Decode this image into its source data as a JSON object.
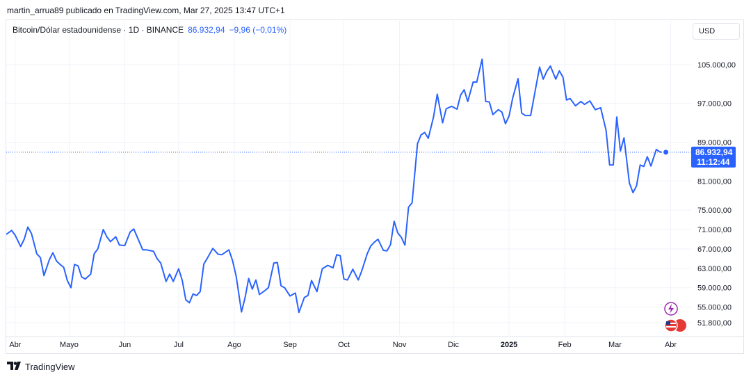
{
  "header": {
    "byline": "martin_arrua89 publicado en TradingView.com, Mar 27, 2025 13:47 UTC+1"
  },
  "legend": {
    "symbol": "Bitcoin/Dólar estadounidense · 1D · BINANCE",
    "price": "86.932,94",
    "change": "−9,96 (−0,01%)"
  },
  "currency": "USD",
  "last_price": {
    "price": "86.932,94",
    "countdown": "11:12:44"
  },
  "footer": {
    "brand": "TradingView"
  },
  "colors": {
    "line": "#2962ff",
    "grid": "#f0f3fa",
    "text": "#131722"
  },
  "chart_data": {
    "type": "line",
    "x_ticks": [
      "Abr",
      "Mayo",
      "Jun",
      "Jul",
      "Ago",
      "Sep",
      "Oct",
      "Nov",
      "Dic",
      "2025",
      "Feb",
      "Mar",
      "Abr"
    ],
    "x_tick_dates": [
      "2024-04-01",
      "2024-05-01",
      "2024-06-01",
      "2024-07-01",
      "2024-08-01",
      "2024-09-01",
      "2024-10-01",
      "2024-11-01",
      "2024-12-01",
      "2025-01-01",
      "2025-02-01",
      "2025-03-01",
      "2025-04-01"
    ],
    "y_ticks": [
      105000,
      97000,
      89000,
      81000,
      75000,
      71000,
      67000,
      63000,
      59000,
      55000,
      51800
    ],
    "y_tick_labels": [
      "105.000,00",
      "97.000,00",
      "89.000,00",
      "81.000,00",
      "75.000,00",
      "71.000,00",
      "67.000,00",
      "63.000,00",
      "59.000,00",
      "55.000,00",
      "51.800,00"
    ],
    "ylim": [
      49500,
      110000
    ],
    "xlim": [
      "2024-03-27",
      "2025-04-07"
    ],
    "series": [
      {
        "values": [
          [
            "2024-03-27",
            70000
          ],
          [
            "2024-03-30",
            70800
          ],
          [
            "2024-04-01",
            69800
          ],
          [
            "2024-04-04",
            67500
          ],
          [
            "2024-04-06",
            69000
          ],
          [
            "2024-04-08",
            71500
          ],
          [
            "2024-04-10",
            70200
          ],
          [
            "2024-04-13",
            66000
          ],
          [
            "2024-04-15",
            65200
          ],
          [
            "2024-04-17",
            61500
          ],
          [
            "2024-04-20",
            64800
          ],
          [
            "2024-04-22",
            66200
          ],
          [
            "2024-04-24",
            64500
          ],
          [
            "2024-04-26",
            63800
          ],
          [
            "2024-04-28",
            63200
          ],
          [
            "2024-04-30",
            60500
          ],
          [
            "2024-05-02",
            59000
          ],
          [
            "2024-05-04",
            63800
          ],
          [
            "2024-05-06",
            63500
          ],
          [
            "2024-05-08",
            61200
          ],
          [
            "2024-05-10",
            60800
          ],
          [
            "2024-05-13",
            61800
          ],
          [
            "2024-05-15",
            66000
          ],
          [
            "2024-05-17",
            67000
          ],
          [
            "2024-05-20",
            71000
          ],
          [
            "2024-05-22",
            69500
          ],
          [
            "2024-05-24",
            68500
          ],
          [
            "2024-05-27",
            69500
          ],
          [
            "2024-05-29",
            67800
          ],
          [
            "2024-06-01",
            67700
          ],
          [
            "2024-06-04",
            70500
          ],
          [
            "2024-06-06",
            71100
          ],
          [
            "2024-06-08",
            69400
          ],
          [
            "2024-06-11",
            66800
          ],
          [
            "2024-06-13",
            66800
          ],
          [
            "2024-06-17",
            66500
          ],
          [
            "2024-06-19",
            65000
          ],
          [
            "2024-06-21",
            64100
          ],
          [
            "2024-06-24",
            60300
          ],
          [
            "2024-06-26",
            61800
          ],
          [
            "2024-06-28",
            60300
          ],
          [
            "2024-07-01",
            62900
          ],
          [
            "2024-07-03",
            60500
          ],
          [
            "2024-07-05",
            56500
          ],
          [
            "2024-07-07",
            55900
          ],
          [
            "2024-07-09",
            57700
          ],
          [
            "2024-07-11",
            57400
          ],
          [
            "2024-07-13",
            58200
          ],
          [
            "2024-07-15",
            63900
          ],
          [
            "2024-07-17",
            65100
          ],
          [
            "2024-07-20",
            67100
          ],
          [
            "2024-07-23",
            65900
          ],
          [
            "2024-07-25",
            65800
          ],
          [
            "2024-07-29",
            66800
          ],
          [
            "2024-07-31",
            64600
          ],
          [
            "2024-08-02",
            61400
          ],
          [
            "2024-08-05",
            54000
          ],
          [
            "2024-08-07",
            57000
          ],
          [
            "2024-08-09",
            60900
          ],
          [
            "2024-08-11",
            58700
          ],
          [
            "2024-08-13",
            60600
          ],
          [
            "2024-08-15",
            57600
          ],
          [
            "2024-08-18",
            58400
          ],
          [
            "2024-08-20",
            59000
          ],
          [
            "2024-08-23",
            64100
          ],
          [
            "2024-08-25",
            64200
          ],
          [
            "2024-08-27",
            59400
          ],
          [
            "2024-08-29",
            59000
          ],
          [
            "2024-09-01",
            57300
          ],
          [
            "2024-09-04",
            57900
          ],
          [
            "2024-09-06",
            53900
          ],
          [
            "2024-09-09",
            57000
          ],
          [
            "2024-09-11",
            57400
          ],
          [
            "2024-09-13",
            60500
          ],
          [
            "2024-09-16",
            58200
          ],
          [
            "2024-09-19",
            62900
          ],
          [
            "2024-09-22",
            63600
          ],
          [
            "2024-09-25",
            63100
          ],
          [
            "2024-09-27",
            65800
          ],
          [
            "2024-09-29",
            65600
          ],
          [
            "2024-10-01",
            60800
          ],
          [
            "2024-10-03",
            60600
          ],
          [
            "2024-10-06",
            62800
          ],
          [
            "2024-10-09",
            60600
          ],
          [
            "2024-10-11",
            62500
          ],
          [
            "2024-10-14",
            66000
          ],
          [
            "2024-10-16",
            67600
          ],
          [
            "2024-10-18",
            68400
          ],
          [
            "2024-10-20",
            69000
          ],
          [
            "2024-10-23",
            66700
          ],
          [
            "2024-10-25",
            66600
          ],
          [
            "2024-10-27",
            67900
          ],
          [
            "2024-10-29",
            72700
          ],
          [
            "2024-10-31",
            70300
          ],
          [
            "2024-11-02",
            69400
          ],
          [
            "2024-11-04",
            67800
          ],
          [
            "2024-11-06",
            75600
          ],
          [
            "2024-11-08",
            76500
          ],
          [
            "2024-11-11",
            88700
          ],
          [
            "2024-11-13",
            90500
          ],
          [
            "2024-11-15",
            91000
          ],
          [
            "2024-11-17",
            89800
          ],
          [
            "2024-11-20",
            94300
          ],
          [
            "2024-11-22",
            98900
          ],
          [
            "2024-11-25",
            93000
          ],
          [
            "2024-11-27",
            95900
          ],
          [
            "2024-11-30",
            96400
          ],
          [
            "2024-12-03",
            95800
          ],
          [
            "2024-12-05",
            98700
          ],
          [
            "2024-12-07",
            99800
          ],
          [
            "2024-12-09",
            97400
          ],
          [
            "2024-12-12",
            101400
          ],
          [
            "2024-12-14",
            101400
          ],
          [
            "2024-12-17",
            106100
          ],
          [
            "2024-12-19",
            97400
          ],
          [
            "2024-12-21",
            97300
          ],
          [
            "2024-12-23",
            94700
          ],
          [
            "2024-12-26",
            95700
          ],
          [
            "2024-12-28",
            95200
          ],
          [
            "2024-12-30",
            92800
          ],
          [
            "2025-01-01",
            94400
          ],
          [
            "2025-01-03",
            98100
          ],
          [
            "2025-01-06",
            102100
          ],
          [
            "2025-01-08",
            95000
          ],
          [
            "2025-01-10",
            94500
          ],
          [
            "2025-01-13",
            94500
          ],
          [
            "2025-01-16",
            100500
          ],
          [
            "2025-01-18",
            104500
          ],
          [
            "2025-01-20",
            102000
          ],
          [
            "2025-01-22",
            103600
          ],
          [
            "2025-01-24",
            104700
          ],
          [
            "2025-01-27",
            102000
          ],
          [
            "2025-01-29",
            103700
          ],
          [
            "2025-01-31",
            102400
          ],
          [
            "2025-02-02",
            97700
          ],
          [
            "2025-02-04",
            98000
          ],
          [
            "2025-02-07",
            96500
          ],
          [
            "2025-02-10",
            97400
          ],
          [
            "2025-02-12",
            96800
          ],
          [
            "2025-02-15",
            97500
          ],
          [
            "2025-02-18",
            95700
          ],
          [
            "2025-02-21",
            96100
          ],
          [
            "2025-02-24",
            91500
          ],
          [
            "2025-02-26",
            84300
          ],
          [
            "2025-02-28",
            84300
          ],
          [
            "2025-03-02",
            94200
          ],
          [
            "2025-03-04",
            87200
          ],
          [
            "2025-03-06",
            89900
          ],
          [
            "2025-03-09",
            80600
          ],
          [
            "2025-03-11",
            78600
          ],
          [
            "2025-03-13",
            80000
          ],
          [
            "2025-03-15",
            84300
          ],
          [
            "2025-03-17",
            84000
          ],
          [
            "2025-03-19",
            86000
          ],
          [
            "2025-03-21",
            84100
          ],
          [
            "2025-03-24",
            87500
          ],
          [
            "2025-03-26",
            87000
          ],
          [
            "2025-03-27",
            86932.94
          ]
        ]
      }
    ],
    "grid": true,
    "last_value": 86932.94
  }
}
